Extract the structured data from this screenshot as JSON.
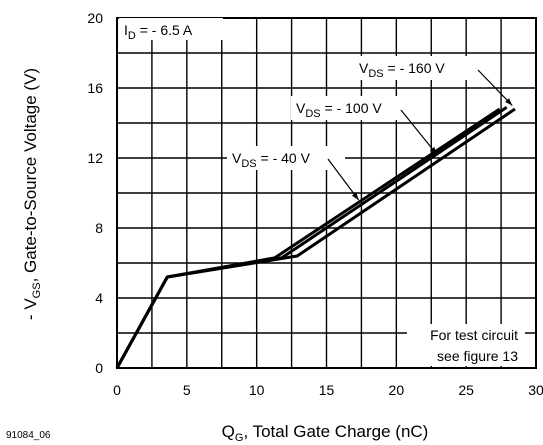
{
  "figure_id": "91084_06",
  "chart_data": {
    "type": "line",
    "xlabel": {
      "main": "Q",
      "sub": "G",
      "rest": ", Total Gate Charge (nC)"
    },
    "ylabel": {
      "pre": "- V",
      "sub": "GS",
      "rest": ", Gate-to-Source Voltage (V)"
    },
    "xlim": [
      0,
      30
    ],
    "ylim": [
      0,
      20
    ],
    "x_ticks": [
      0,
      5,
      10,
      15,
      20,
      25,
      30
    ],
    "y_ticks": [
      0,
      4,
      8,
      12,
      16,
      20
    ],
    "x_tick_labels": [
      "0",
      "5",
      "10",
      "15",
      "20",
      "25",
      "30"
    ],
    "y_tick_labels": [
      "0",
      "4",
      "8",
      "12",
      "16",
      "20"
    ],
    "grid": true,
    "condition": {
      "pre": "I",
      "sub": "D",
      "rest": " = - 6.5 A"
    },
    "note_lines": [
      "For test circuit",
      "see figure 13"
    ],
    "series": [
      {
        "label": {
          "pre": "V",
          "sub": "DS",
          "rest": " = - 40 V"
        },
        "points": [
          [
            0,
            0
          ],
          [
            3.6,
            5.2
          ],
          [
            11.3,
            6.3
          ],
          [
            27.4,
            14.8
          ]
        ],
        "arrow_to": [
          17.3,
          9.6
        ]
      },
      {
        "label": {
          "pre": "V",
          "sub": "DS",
          "rest": " = - 100 V"
        },
        "points": [
          [
            0,
            0
          ],
          [
            3.6,
            5.2
          ],
          [
            11.8,
            6.3
          ],
          [
            27.9,
            14.9
          ]
        ],
        "arrow_to": [
          22.9,
          12.2
        ]
      },
      {
        "label": {
          "pre": "V",
          "sub": "DS",
          "rest": " = - 160 V"
        },
        "points": [
          [
            0,
            0
          ],
          [
            3.6,
            5.2
          ],
          [
            12.9,
            6.4
          ],
          [
            28.5,
            14.8
          ]
        ],
        "arrow_to": [
          28.3,
          15.0
        ]
      }
    ]
  }
}
